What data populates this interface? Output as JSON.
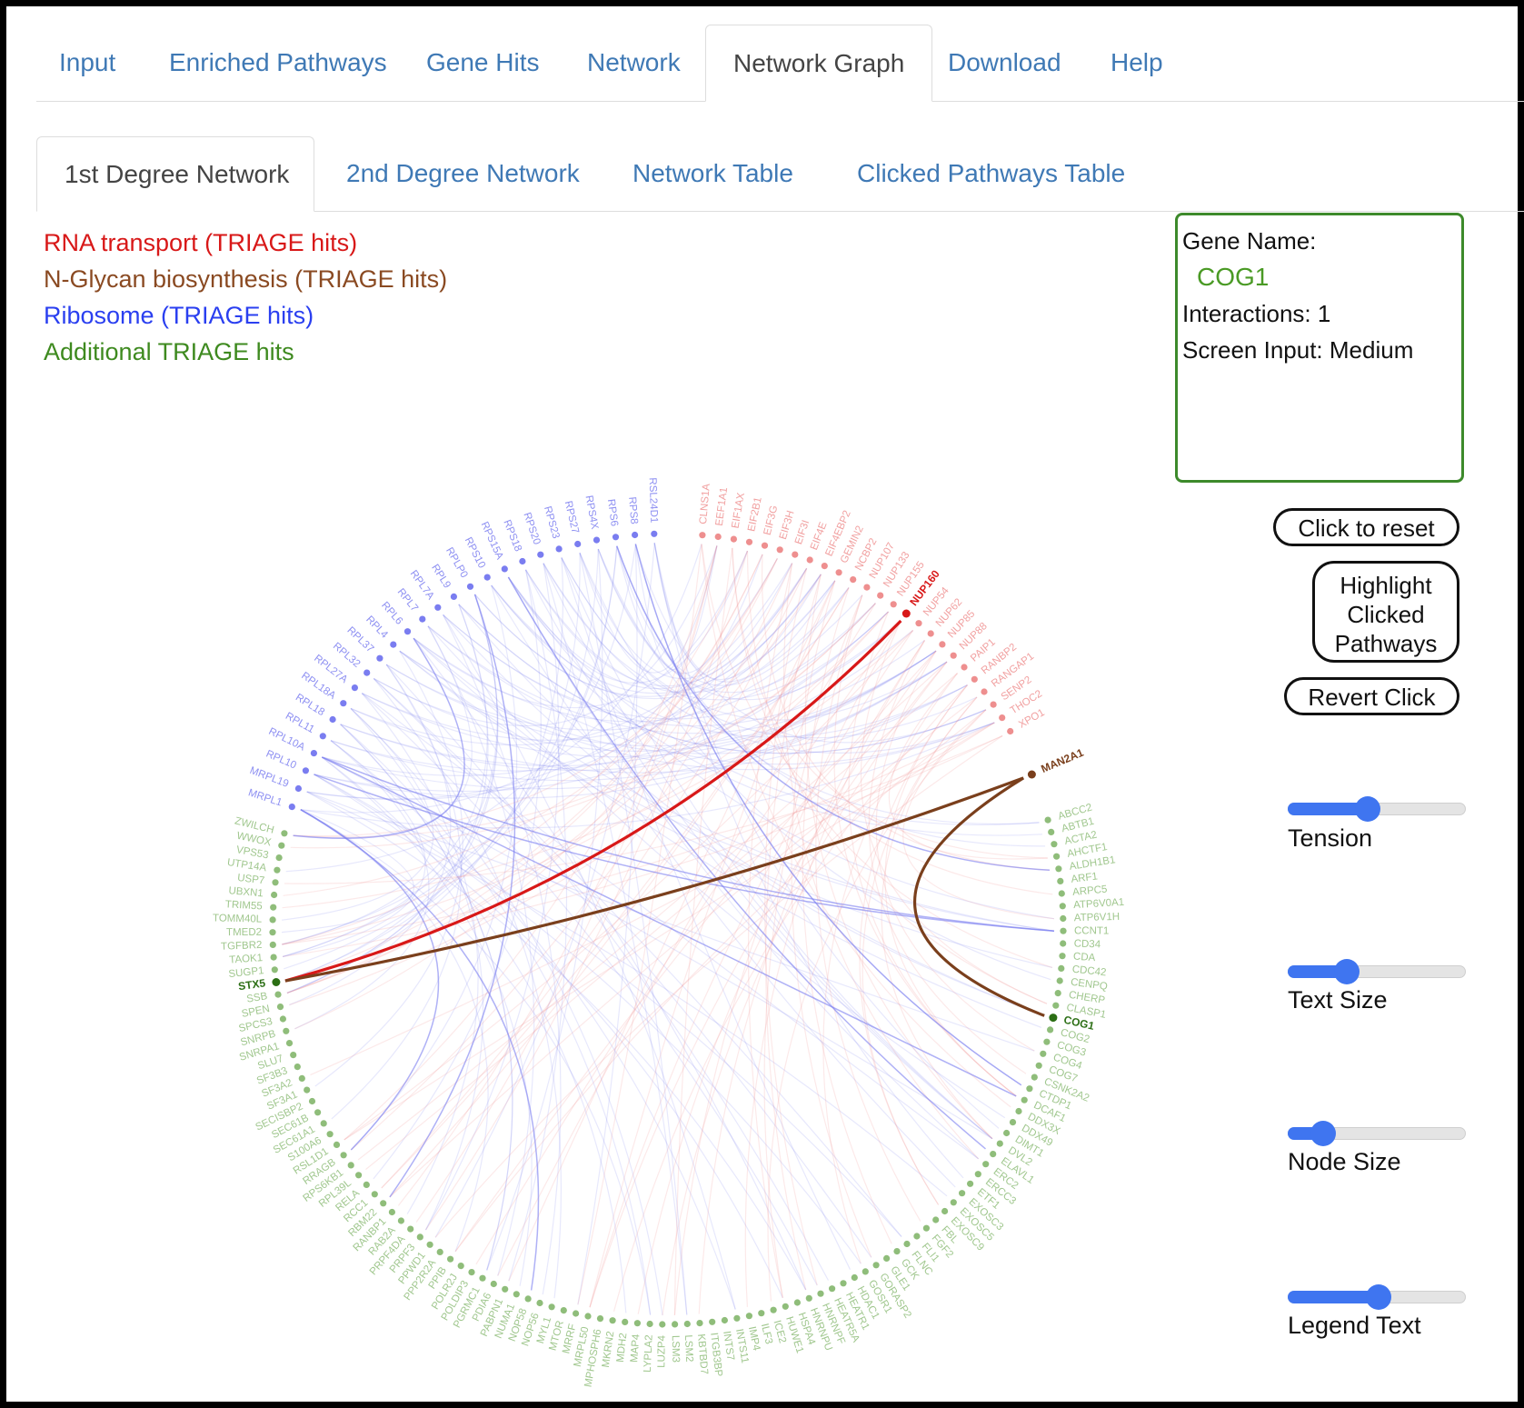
{
  "tabs_top": [
    {
      "label": "Input",
      "active": false
    },
    {
      "label": "Enriched Pathways",
      "active": false
    },
    {
      "label": "Gene Hits",
      "active": false
    },
    {
      "label": "Network",
      "active": false
    },
    {
      "label": "Network Graph",
      "active": true
    },
    {
      "label": "Download",
      "active": false
    },
    {
      "label": "Help",
      "active": false
    }
  ],
  "tabs_sub": [
    {
      "label": "1st Degree Network",
      "active": true
    },
    {
      "label": "2nd Degree Network",
      "active": false
    },
    {
      "label": "Network Table",
      "active": false
    },
    {
      "label": "Clicked Pathways Table",
      "active": false
    }
  ],
  "legend": [
    {
      "label": "RNA transport (TRIAGE hits)",
      "color": "#d81818"
    },
    {
      "label": "N-Glycan biosynthesis (TRIAGE hits)",
      "color": "#8a4a22"
    },
    {
      "label": "Ribosome (TRIAGE hits)",
      "color": "#2a3ff0"
    },
    {
      "label": "Additional TRIAGE hits",
      "color": "#3e8a1f"
    }
  ],
  "info": {
    "gene_name_label": "Gene Name:",
    "gene_name": "COG1",
    "interactions": "Interactions: 1",
    "screen_input": "Screen Input: Medium"
  },
  "buttons": {
    "reset": "Click to reset",
    "highlight_lines": [
      "Highlight",
      "Clicked",
      "Pathways"
    ],
    "revert": "Revert Click"
  },
  "sliders": [
    {
      "label": "Tension",
      "value": 0.45
    },
    {
      "label": "Text Size",
      "value": 0.33
    },
    {
      "label": "Node Size",
      "value": 0.2
    },
    {
      "label": "Legend Text",
      "value": 0.51
    }
  ],
  "network": {
    "colors": {
      "ribosome": "#7a7df0",
      "rna": "#ee8f8f",
      "nglycan": "#8a4a22",
      "additional": "#8fbd7a",
      "highlight_rna": "#d81818",
      "highlight_nglycan": "#7a3f1c",
      "highlight_label_green": "#2b6e14"
    },
    "ribosome_genes": [
      "MRPL1",
      "MRPL19",
      "RPL10",
      "RPL10A",
      "RPL11",
      "RPL18",
      "RPL18A",
      "RPL27A",
      "RPL32",
      "RPL37",
      "RPL4",
      "RPL6",
      "RPL7",
      "RPL7A",
      "RPL9",
      "RPLP0",
      "RPS10",
      "RPS15A",
      "RPS18",
      "RPS20",
      "RPS23",
      "RPS27",
      "RPS4X",
      "RPS6",
      "RPS8",
      "RSL24D1"
    ],
    "rna_genes": [
      "CLNS1A",
      "EEF1A1",
      "EIF1AX",
      "EIF2B1",
      "EIF3G",
      "EIF3H",
      "EIF3I",
      "EIF4E",
      "EIF4EBP2",
      "GEMIN2",
      "NCBP2",
      "NUP107",
      "NUP133",
      "NUP155",
      "NUP160",
      "NUP54",
      "NUP62",
      "NUP85",
      "NUP88",
      "PAIP1",
      "RANBP2",
      "RANGAP1",
      "SENP2",
      "THOC2",
      "XPO1"
    ],
    "nglycan_genes": [
      "MAN2A1"
    ],
    "additional_genes": [
      "ABCC2",
      "ABTB1",
      "ACTA2",
      "AHCTF1",
      "ALDH1B1",
      "ARF1",
      "ARPC5",
      "ATP6V0A1",
      "ATP6V1H",
      "CCNT1",
      "CD34",
      "CDA",
      "CDC42",
      "CENPQ",
      "CHERP",
      "CLASP1",
      "COG1",
      "COG2",
      "COG3",
      "COG4",
      "COG7",
      "CSNK2A2",
      "CTDP1",
      "DCAF1",
      "DDX3X",
      "DDX49",
      "DIMT1",
      "DVL2",
      "ELAVL1",
      "ERC2",
      "ERCC3",
      "ETF1",
      "EXOSC3",
      "EXOSC5",
      "EXOSC9",
      "FBL",
      "FGF2",
      "FLI1",
      "FLNC",
      "GCK",
      "GLE1",
      "GORASP2",
      "GOSR1",
      "HDAC1",
      "HEATR1",
      "HEATR5A",
      "HNRNPF",
      "HNRNPU",
      "HSPA4",
      "HUWE1",
      "ICE2",
      "ILF3",
      "IMP4",
      "INTS11",
      "INTS7",
      "ITGB3BP",
      "KBTBD7",
      "LSM2",
      "LSM3",
      "LUZP4",
      "LYPLA2",
      "MAP4",
      "MDH2",
      "MKRN2",
      "MPHOSPH6",
      "MRPL50",
      "MRRF",
      "MTOR",
      "MYL1",
      "NOP56",
      "NOP58",
      "NUMA1",
      "PABPN1",
      "PDIA6",
      "PGRMC1",
      "POLDIP3",
      "POLR2J",
      "PPIB",
      "PPP2R2A",
      "PPWD1",
      "PRPF3",
      "PRPF4DA",
      "RAB2A",
      "RANBP1",
      "RBM22",
      "RCC1",
      "RELA",
      "RPL39L",
      "RPS6KB1",
      "RRAGB",
      "RSL1D1",
      "S100A6",
      "SEC61A1",
      "SEC61B",
      "SECISBP2",
      "SF3A1",
      "SF3A2",
      "SF3B3",
      "SLU7",
      "SNRPA1",
      "SNRPB",
      "SPCS3",
      "SPEN",
      "SSB",
      "STX5",
      "SUGP1",
      "TAOK1",
      "TGFBR2",
      "TMED2",
      "TOMM40L",
      "TRIM55",
      "UBXN1",
      "USP7",
      "UTP14A",
      "VPS53",
      "WWOX",
      "ZWILCH"
    ],
    "highlight_genes": {
      "rna": "NUP160",
      "nglycan": "MAN2A1",
      "selected": "COG1",
      "other": "STX5"
    }
  }
}
